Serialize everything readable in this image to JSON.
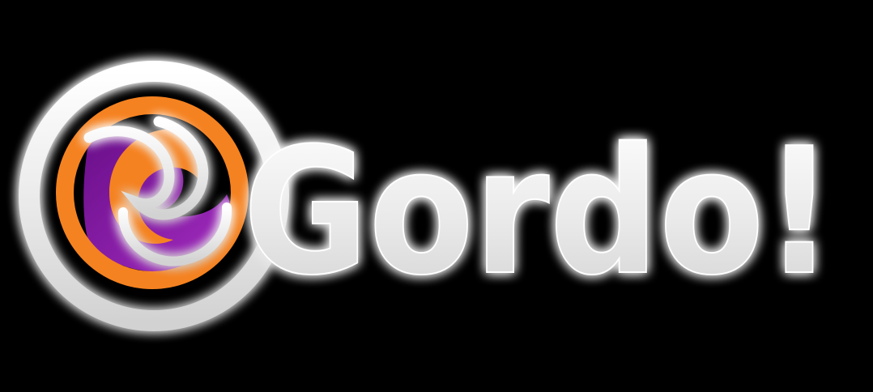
{
  "logo": {
    "wordmark": "Gordo!",
    "colors": {
      "background": "#000000",
      "ring": "#f2f2f2",
      "orange": "#f58220",
      "purple": "#8a1ea0",
      "glow": "#ffffff"
    },
    "icon": "swirl-emblem-icon"
  }
}
